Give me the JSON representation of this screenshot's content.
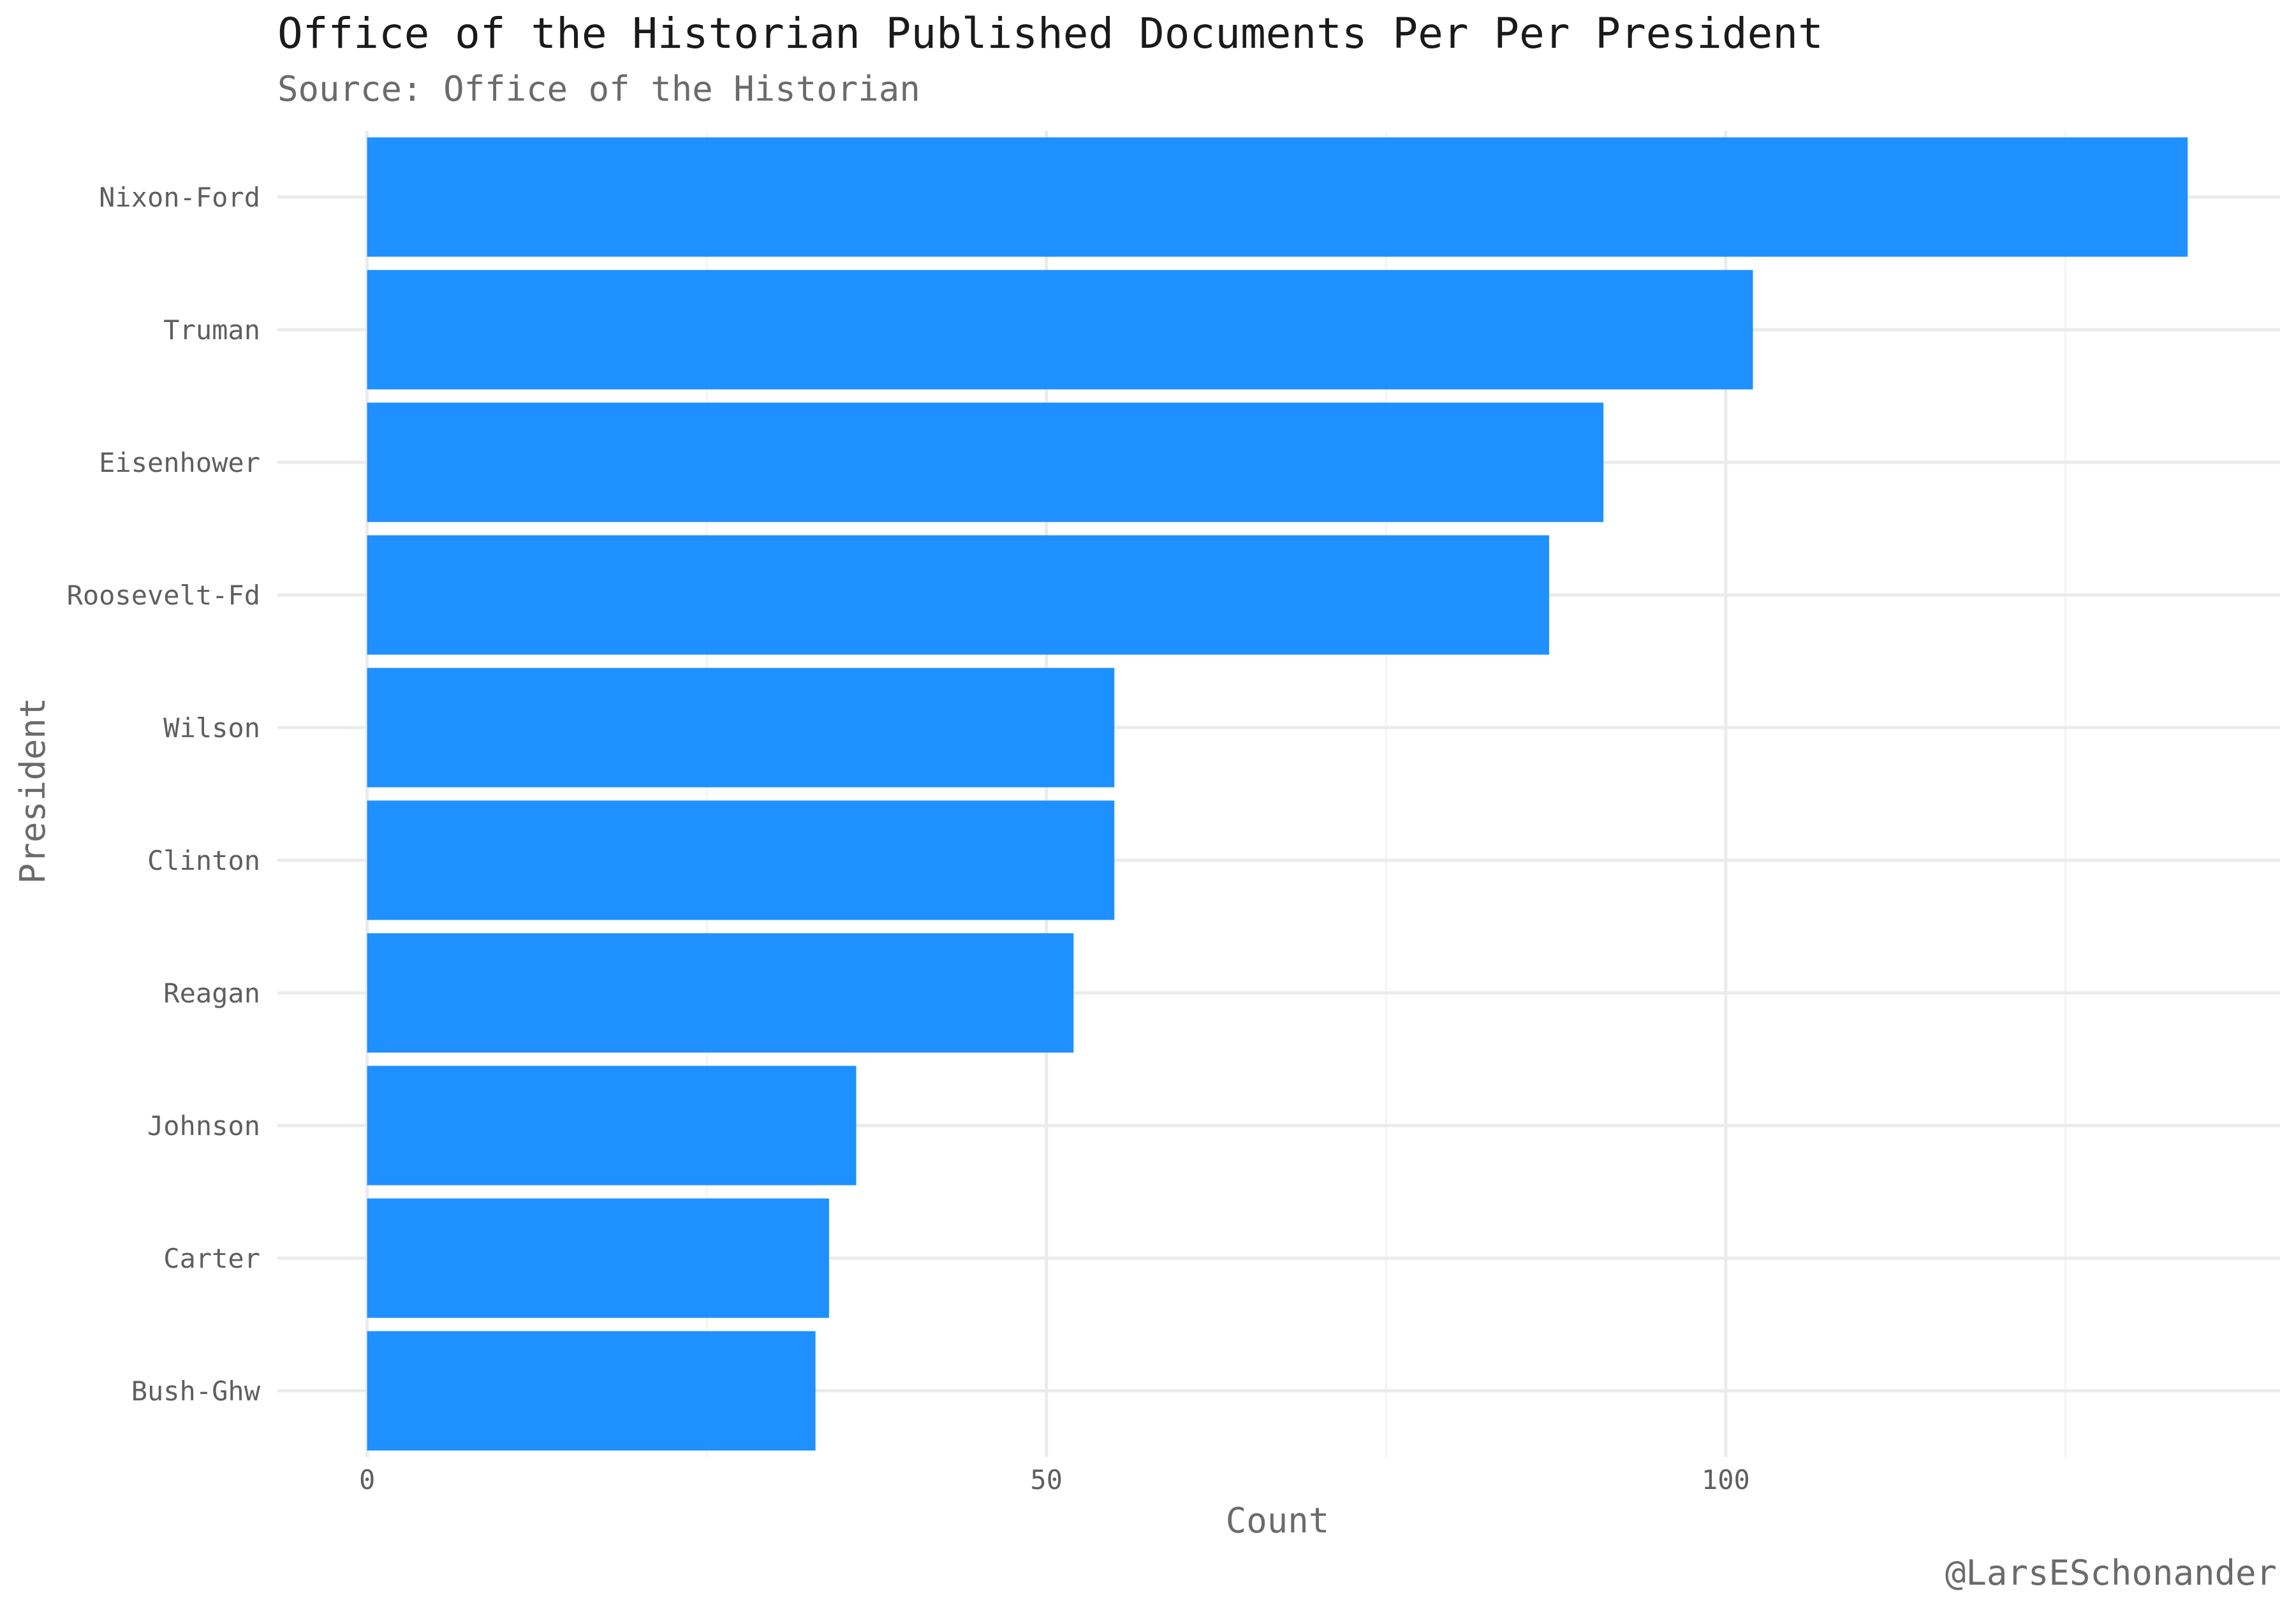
{
  "chart_data": {
    "type": "bar",
    "orientation": "horizontal",
    "title": "Office of the Historian Published Documents Per Per President",
    "subtitle": "Source: Office of the Historian",
    "xlabel": "Count",
    "ylabel": "President",
    "caption": "@LarsESchonander",
    "categories": [
      "Nixon-Ford",
      "Truman",
      "Eisenhower",
      "Roosevelt-Fd",
      "Wilson",
      "Clinton",
      "Reagan",
      "Johnson",
      "Carter",
      "Bush-Ghw"
    ],
    "values": [
      134,
      102,
      91,
      87,
      55,
      55,
      52,
      36,
      34,
      33
    ],
    "xlim": [
      -6.6,
      140.8
    ],
    "xticks": [
      0,
      50,
      100
    ],
    "xtick_labels": [
      "0",
      "50",
      "100"
    ],
    "bar_color": "#1E90FF",
    "grid": true,
    "legend": "none"
  }
}
